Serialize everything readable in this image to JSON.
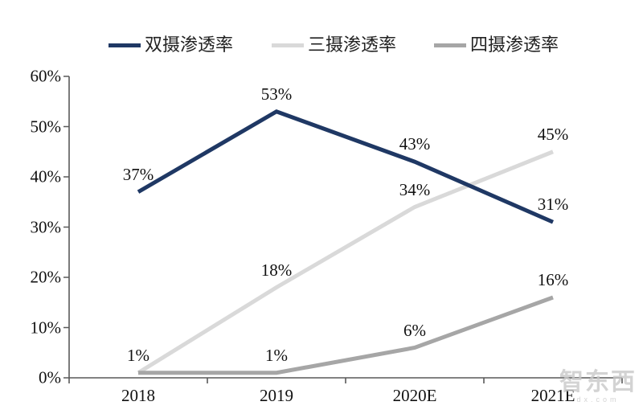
{
  "chart_data": {
    "type": "line",
    "title": "",
    "categories": [
      "2018",
      "2019",
      "2020E",
      "2021E"
    ],
    "series": [
      {
        "name": "双摄渗透率",
        "color": "#1f3864",
        "values": [
          37,
          53,
          43,
          31
        ],
        "labels": [
          "37%",
          "53%",
          "43%",
          "31%"
        ]
      },
      {
        "name": "三摄渗透率",
        "color": "#d9d9d9",
        "values": [
          1,
          18,
          34,
          45
        ],
        "labels": [
          "1%",
          "18%",
          "34%",
          "45%"
        ]
      },
      {
        "name": "四摄渗透率",
        "color": "#a6a6a6",
        "values": [
          1,
          1,
          6,
          16
        ],
        "labels": [
          null,
          "1%",
          "6%",
          "16%"
        ]
      }
    ],
    "ylabel": "",
    "xlabel": "",
    "ylim": [
      0,
      60
    ],
    "yticks": [
      {
        "label": "0%",
        "value": 0
      },
      {
        "label": "10%",
        "value": 10
      },
      {
        "label": "20%",
        "value": 20
      },
      {
        "label": "30%",
        "value": 30
      },
      {
        "label": "40%",
        "value": 40
      },
      {
        "label": "50%",
        "value": 50
      },
      {
        "label": "60%",
        "value": 60
      }
    ],
    "grid": false,
    "legend_position": "top",
    "axis_color": "#595959"
  },
  "watermark": {
    "main": "智东西",
    "sub": "dx.com"
  }
}
